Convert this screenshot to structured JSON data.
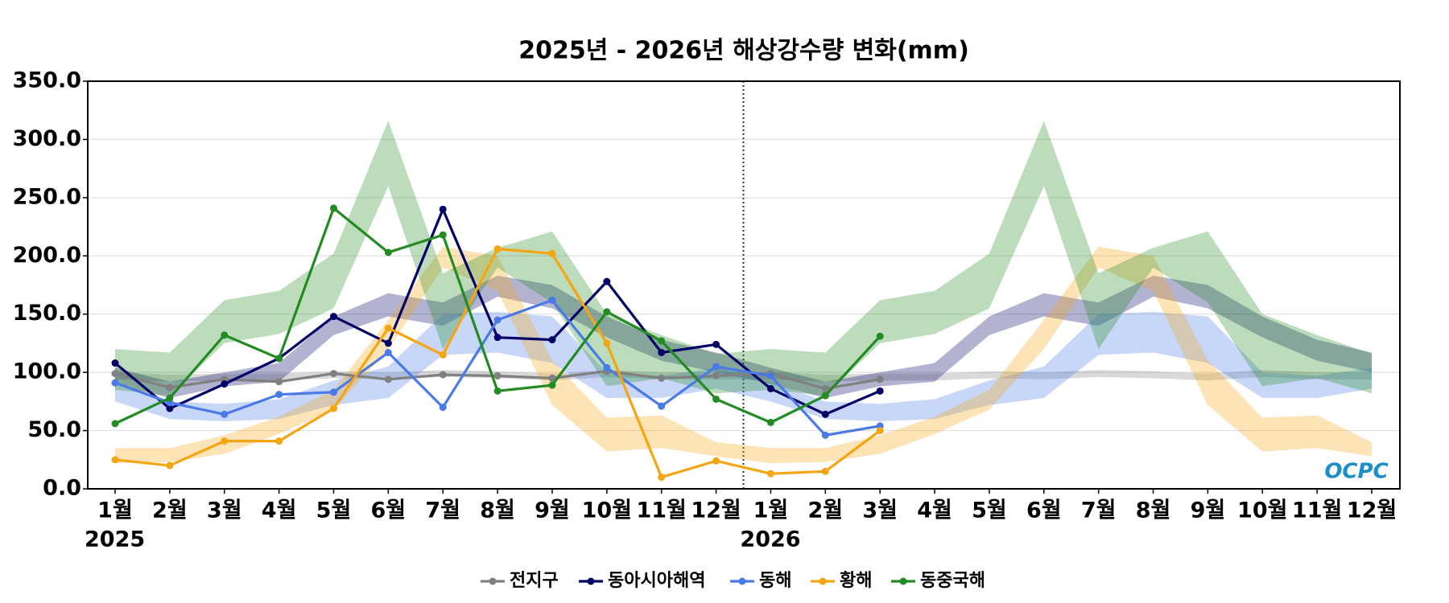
{
  "chart_data": {
    "type": "line",
    "title": "2025년 - 2026년 해상강수량 변화(mm)",
    "categories": [
      "1월",
      "2월",
      "3월",
      "4월",
      "5월",
      "6월",
      "7월",
      "8월",
      "9월",
      "10월",
      "11월",
      "12월",
      "1월",
      "2월",
      "3월",
      "4월",
      "5월",
      "6월",
      "7월",
      "8월",
      "9월",
      "10월",
      "11월",
      "12월"
    ],
    "years": [
      "2025",
      "2026"
    ],
    "ylim": [
      0,
      350
    ],
    "yticks": [
      {
        "value": 0,
        "label": "0.0"
      },
      {
        "value": 50,
        "label": "50.0"
      },
      {
        "value": 100,
        "label": "100.0"
      },
      {
        "value": 150,
        "label": "150.0"
      },
      {
        "value": 200,
        "label": "200.0"
      },
      {
        "value": 250,
        "label": "250.0"
      },
      {
        "value": 300,
        "label": "300.0"
      },
      {
        "value": 350,
        "label": "350.0"
      }
    ],
    "grid": true,
    "legend": "bottom",
    "logo": "OCPC",
    "series": [
      {
        "name": "전지구",
        "color": "#808080",
        "values": [
          99,
          87,
          94,
          92,
          99,
          94,
          98,
          97,
          95,
          101,
          95,
          97,
          99,
          86,
          94,
          null,
          null,
          null,
          null,
          null,
          null,
          null,
          null,
          null
        ],
        "band_low": [
          94,
          92,
          93,
          93,
          95,
          94,
          96,
          95,
          93,
          96,
          94,
          94,
          94,
          92,
          93,
          93,
          95,
          94,
          96,
          95,
          93,
          96,
          94,
          94
        ],
        "band_high": [
          100,
          98,
          99,
          99,
          101,
          100,
          102,
          101,
          99,
          102,
          100,
          100,
          100,
          98,
          99,
          99,
          101,
          100,
          102,
          101,
          99,
          102,
          100,
          100
        ]
      },
      {
        "name": "동아시아해역",
        "color": "#000066",
        "values": [
          108,
          69,
          90,
          112,
          148,
          125,
          240,
          130,
          128,
          178,
          117,
          124,
          86,
          64,
          84,
          null,
          null,
          null,
          null,
          null,
          null,
          null,
          null,
          null
        ],
        "band_low": [
          90,
          78,
          88,
          92,
          132,
          148,
          140,
          165,
          155,
          130,
          110,
          100,
          90,
          78,
          88,
          92,
          132,
          148,
          140,
          165,
          155,
          130,
          110,
          100
        ],
        "band_high": [
          104,
          92,
          100,
          108,
          148,
          168,
          160,
          183,
          175,
          148,
          128,
          117,
          104,
          92,
          100,
          108,
          148,
          168,
          160,
          183,
          175,
          148,
          128,
          117
        ]
      },
      {
        "name": "동해",
        "color": "#4a7ae8",
        "values": [
          91,
          74,
          64,
          81,
          83,
          117,
          70,
          145,
          162,
          104,
          71,
          105,
          97,
          46,
          54,
          null,
          null,
          null,
          null,
          null,
          null,
          null,
          null,
          null
        ],
        "band_low": [
          75,
          60,
          58,
          60,
          72,
          78,
          115,
          117,
          108,
          78,
          78,
          86,
          75,
          60,
          58,
          60,
          72,
          78,
          115,
          117,
          108,
          78,
          78,
          86
        ],
        "band_high": [
          92,
          75,
          73,
          77,
          93,
          105,
          150,
          152,
          148,
          100,
          97,
          104,
          92,
          75,
          73,
          77,
          93,
          105,
          150,
          152,
          148,
          100,
          97,
          104
        ]
      },
      {
        "name": "황해",
        "color": "#f5a511",
        "values": [
          25,
          20,
          41,
          41,
          69,
          138,
          115,
          206,
          202,
          125,
          10,
          24,
          13,
          15,
          50,
          null,
          null,
          null,
          null,
          null,
          null,
          null,
          null,
          null
        ],
        "band_low": [
          22,
          23,
          30,
          47,
          68,
          120,
          190,
          170,
          72,
          32,
          35,
          28,
          22,
          23,
          30,
          47,
          68,
          120,
          190,
          170,
          72,
          32,
          35,
          28
        ],
        "band_high": [
          35,
          35,
          46,
          62,
          85,
          145,
          208,
          200,
          110,
          61,
          63,
          40,
          35,
          35,
          46,
          62,
          85,
          145,
          208,
          200,
          110,
          61,
          63,
          40
        ]
      },
      {
        "name": "동중국해",
        "color": "#228b22",
        "values": [
          56,
          78,
          132,
          112,
          241,
          203,
          218,
          84,
          89,
          152,
          127,
          77,
          57,
          80,
          131,
          null,
          null,
          null,
          null,
          null,
          null,
          null,
          null,
          null
        ],
        "band_low": [
          85,
          80,
          125,
          133,
          155,
          260,
          120,
          190,
          160,
          88,
          95,
          82,
          85,
          80,
          125,
          133,
          155,
          260,
          120,
          190,
          160,
          88,
          95,
          82
        ],
        "band_high": [
          120,
          117,
          162,
          170,
          202,
          316,
          185,
          207,
          221,
          150,
          132,
          116,
          120,
          117,
          162,
          170,
          202,
          316,
          185,
          207,
          221,
          150,
          132,
          116
        ]
      }
    ]
  }
}
